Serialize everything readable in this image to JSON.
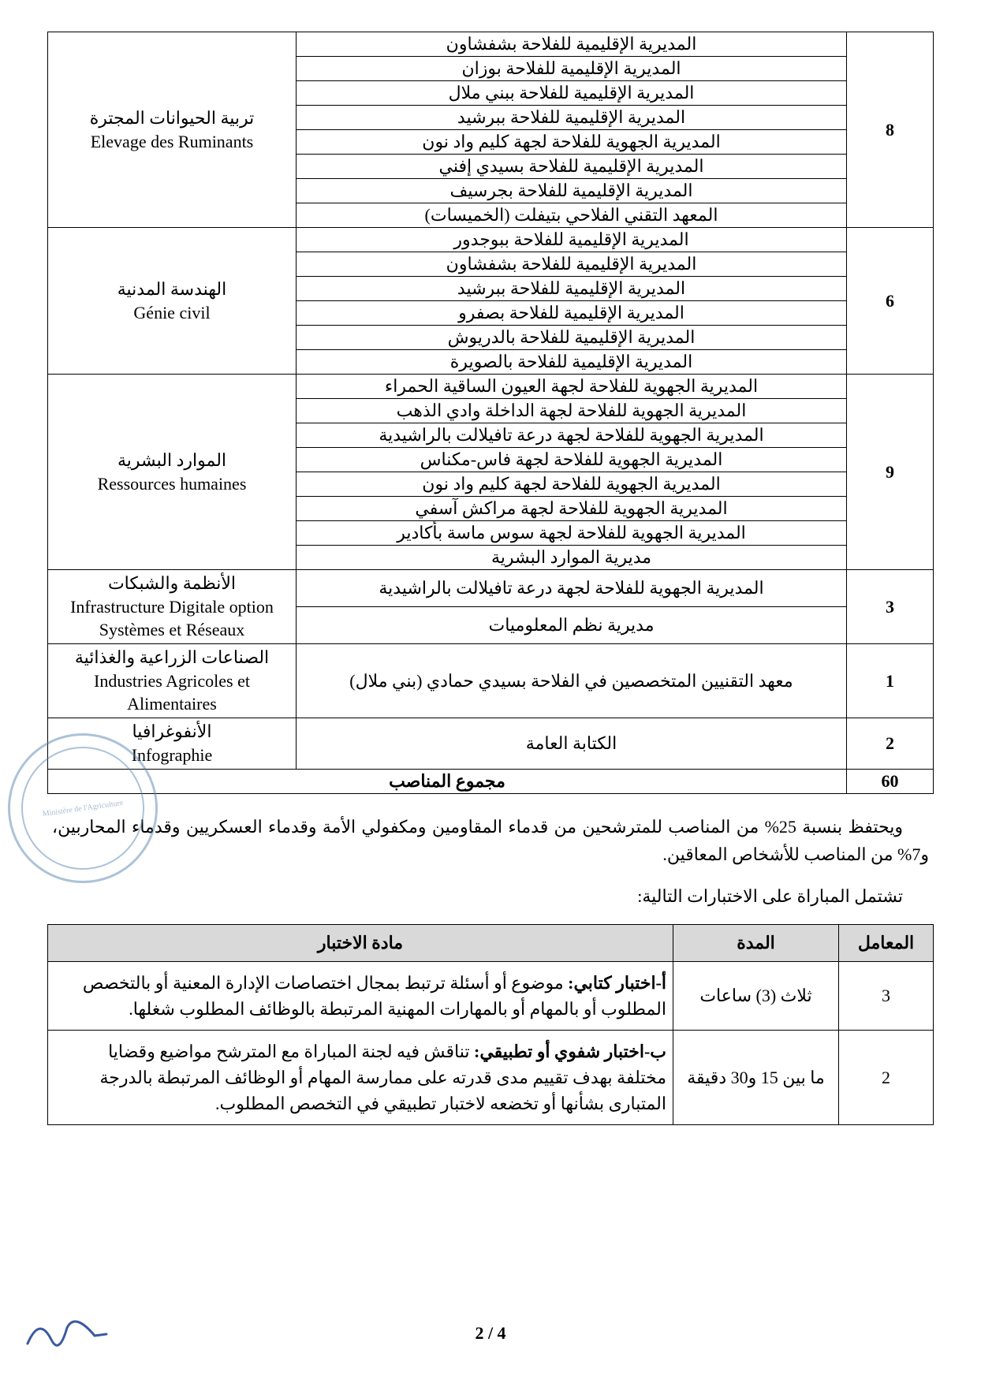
{
  "posts_table": {
    "columns": {
      "count_width": 110,
      "location_width": 600,
      "speciality_width": 300
    },
    "groups": [
      {
        "speciality_ar": "تربية الحيوانات المجترة",
        "speciality_fr": "Elevage des Ruminants",
        "count": 8,
        "locations": [
          "المديرية الإقليمية للفلاحة بشفشاون",
          "المديرية الإقليمية للفلاحة بوزان",
          "المديرية الإقليمية للفلاحة ببني ملال",
          "المديرية الإقليمية للفلاحة ببرشيد",
          "المديرية الجهوية للفلاحة لجهة كليم واد نون",
          "المديرية الإقليمية للفلاحة بسيدي إفني",
          "المديرية الإقليمية للفلاحة بجرسيف",
          "المعهد التقني الفلاحي بتيفلت (الخميسات)"
        ]
      },
      {
        "speciality_ar": "الهندسة المدنية",
        "speciality_fr": "Génie civil",
        "count": 6,
        "locations": [
          "المديرية الإقليمية للفلاحة ببوجدور",
          "المديرية الإقليمية للفلاحة بشفشاون",
          "المديرية الإقليمية للفلاحة ببرشيد",
          "المديرية الإقليمية للفلاحة بصفرو",
          "المديرية الإقليمية للفلاحة بالدريوش",
          "المديرية الإقليمية للفلاحة بالصويرة"
        ]
      },
      {
        "speciality_ar": "الموارد البشرية",
        "speciality_fr": "Ressources humaines",
        "count": 9,
        "locations": [
          "المديرية الجهوية للفلاحة لجهة العيون الساقية الحمراء",
          "المديرية الجهوية للفلاحة لجهة الداخلة وادي الذهب",
          "المديرية الجهوية للفلاحة لجهة درعة تافيلالت بالراشيدية",
          "المديرية الجهوية للفلاحة لجهة فاس-مكناس",
          "المديرية الجهوية للفلاحة لجهة كليم واد نون",
          "المديرية الجهوية للفلاحة لجهة مراكش آسفي",
          "المديرية الجهوية للفلاحة لجهة سوس ماسة بأكادير",
          "مديرية الموارد البشرية"
        ]
      },
      {
        "speciality_ar": "الأنظمة والشبكات",
        "speciality_fr": "Infrastructure Digitale option Systèmes et Réseaux",
        "count": 3,
        "locations": [
          "المديرية الجهوية للفلاحة لجهة درعة تافيلالت بالراشيدية",
          "مديرية نظم المعلوميات"
        ]
      },
      {
        "speciality_ar": "الصناعات الزراعية والغذائية",
        "speciality_fr": "Industries Agricoles et Alimentaires",
        "count": 1,
        "locations": [
          "معهد التقنيين المتخصصين في الفلاحة بسيدي حمادي (بني ملال)"
        ]
      },
      {
        "speciality_ar": "الأنفوغرافيا",
        "speciality_fr": "Infographie",
        "count": 2,
        "locations": [
          "الكتابة العامة"
        ]
      }
    ],
    "total_label": "مجموع المناصب",
    "total": 60
  },
  "paragraphs": {
    "p1": "ويحتفظ بنسبة 25% من المناصب للمترشحين من قدماء المقاومين ومكفولي الأمة وقدماء العسكريين وقدماء المحاربين، و7% من المناصب للأشخاص المعاقين.",
    "p2": "تشتمل المباراة على الاختبارات التالية:"
  },
  "exam_table": {
    "header": {
      "subject": "مادة الاختبار",
      "duration": "المدة",
      "coef": "المعامل"
    },
    "header_bg": "#d9d9d9",
    "col_widths": {
      "subject": 700,
      "duration": 210,
      "coef": 120
    },
    "rows": [
      {
        "subject_prefix": "أ-اختبار كتابي: ",
        "subject_body": "موضوع أو أسئلة ترتبط بمجال اختصاصات الإدارة المعنية أو بالتخصص المطلوب أو بالمهام أو بالمهارات المهنية المرتبطة بالوظائف المطلوب شغلها.",
        "duration": "ثلاث (3) ساعات",
        "coef": 3
      },
      {
        "subject_prefix": "ب-اختبار شفوي أو تطبيقي: ",
        "subject_body": "تناقش فيه لجنة المباراة مع المترشح مواضيع وقضايا مختلفة بهدف تقييم مدى قدرته على ممارسة المهام أو الوظائف المرتبطة بالدرجة المتبارى بشأنها أو تخضعه لاختبار تطبيقي في التخصص المطلوب.",
        "duration": "ما بين 15 و30 دقيقة",
        "coef": 2
      }
    ]
  },
  "page_number": "2 / 4",
  "colors": {
    "text": "#000000",
    "border": "#000000",
    "background": "#ffffff",
    "stamp": "#4a7aa8"
  }
}
